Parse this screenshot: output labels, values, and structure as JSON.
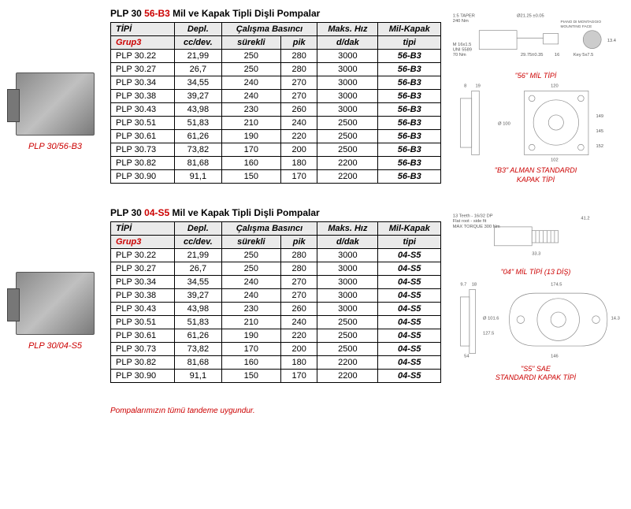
{
  "footnote": "Pompalarımızın tümü tandeme uygundur.",
  "sections": [
    {
      "pump_label": "PLP 30/56-B3",
      "title_prefix": "PLP 30 ",
      "title_red": "56-B3",
      "title_suffix": " Mil ve  Kapak Tipli Dişli Pompalar",
      "header1": {
        "c0": "TİPİ",
        "c1": "Depl.",
        "c2": "Çalışma Basıncı",
        "c3": "Maks. Hız",
        "c4": "Mil-Kapak"
      },
      "header2": {
        "c0": "Grup3",
        "c1": "cc/dev.",
        "c2a": "sürekli",
        "c2b": "pik",
        "c3": "d/dak",
        "c4": "tipi"
      },
      "rows": [
        {
          "c0": "PLP 30.22",
          "c1": "21,99",
          "c2": "250",
          "c3": "280",
          "c4": "3000",
          "c5": "56-B3"
        },
        {
          "c0": "PLP 30.27",
          "c1": "26,7",
          "c2": "250",
          "c3": "280",
          "c4": "3000",
          "c5": "56-B3"
        },
        {
          "c0": "PLP 30.34",
          "c1": "34,55",
          "c2": "240",
          "c3": "270",
          "c4": "3000",
          "c5": "56-B3"
        },
        {
          "c0": "PLP 30.38",
          "c1": "39,27",
          "c2": "240",
          "c3": "270",
          "c4": "3000",
          "c5": "56-B3"
        },
        {
          "c0": "PLP 30.43",
          "c1": "43,98",
          "c2": "230",
          "c3": "260",
          "c4": "3000",
          "c5": "56-B3"
        },
        {
          "c0": "PLP 30.51",
          "c1": "51,83",
          "c2": "210",
          "c3": "240",
          "c4": "2500",
          "c5": "56-B3"
        },
        {
          "c0": "PLP 30.61",
          "c1": "61,26",
          "c2": "190",
          "c3": "220",
          "c4": "2500",
          "c5": "56-B3"
        },
        {
          "c0": "PLP 30.73",
          "c1": "73,82",
          "c2": "170",
          "c3": "200",
          "c4": "2500",
          "c5": "56-B3"
        },
        {
          "c0": "PLP 30.82",
          "c1": "81,68",
          "c2": "160",
          "c3": "180",
          "c4": "2200",
          "c5": "56-B3"
        },
        {
          "c0": "PLP 30.90",
          "c1": "91,1",
          "c2": "150",
          "c3": "170",
          "c4": "2200",
          "c5": "56-B3"
        }
      ],
      "diag1_texts": {
        "t1": "1:5 TAPER",
        "t2": "240 Nm",
        "t3": "Ø21.25 ±0.05",
        "t4": "PIANO DI MONTAGGIO",
        "t5": "MOUNTING FACE",
        "t6": "M 16x1.5",
        "t7": "UNI 5589",
        "t8": "70 Nm",
        "t9": "29.75±0.35",
        "t10": "16",
        "t11": "Key 5x7.5",
        "t12": "13.4"
      },
      "diag1_label": "\"56\" MİL TİPİ",
      "diag2_texts": {
        "t1": "8",
        "t2": "19",
        "t3": "120",
        "t4": "149",
        "t5": "Ø 100",
        "t6": "102",
        "t7": "145",
        "t8": "152"
      },
      "diag2_label_a": "\"B3\" ALMAN STANDARDI",
      "diag2_label_b": "KAPAK TİPİ"
    },
    {
      "pump_label": "PLP 30/04-S5",
      "title_prefix": "PLP 30 ",
      "title_red": "04-S5",
      "title_suffix": " Mil ve  Kapak Tipli Dişli Pompalar",
      "header1": {
        "c0": "TİPİ",
        "c1": "Depl.",
        "c2": "Çalışma Basıncı",
        "c3": "Maks. Hız",
        "c4": "Mil-Kapak"
      },
      "header2": {
        "c0": "Grup3",
        "c1": "cc/dev.",
        "c2a": "sürekli",
        "c2b": "pik",
        "c3": "d/dak",
        "c4": "tipi"
      },
      "rows": [
        {
          "c0": "PLP 30.22",
          "c1": "21,99",
          "c2": "250",
          "c3": "280",
          "c4": "3000",
          "c5": "04-S5"
        },
        {
          "c0": "PLP 30.27",
          "c1": "26,7",
          "c2": "250",
          "c3": "280",
          "c4": "3000",
          "c5": "04-S5"
        },
        {
          "c0": "PLP 30.34",
          "c1": "34,55",
          "c2": "240",
          "c3": "270",
          "c4": "3000",
          "c5": "04-S5"
        },
        {
          "c0": "PLP 30.38",
          "c1": "39,27",
          "c2": "240",
          "c3": "270",
          "c4": "3000",
          "c5": "04-S5"
        },
        {
          "c0": "PLP 30.43",
          "c1": "43,98",
          "c2": "230",
          "c3": "260",
          "c4": "3000",
          "c5": "04-S5"
        },
        {
          "c0": "PLP 30.51",
          "c1": "51,83",
          "c2": "210",
          "c3": "240",
          "c4": "2500",
          "c5": "04-S5"
        },
        {
          "c0": "PLP 30.61",
          "c1": "61,26",
          "c2": "190",
          "c3": "220",
          "c4": "2500",
          "c5": "04-S5"
        },
        {
          "c0": "PLP 30.73",
          "c1": "73,82",
          "c2": "170",
          "c3": "200",
          "c4": "2500",
          "c5": "04-S5"
        },
        {
          "c0": "PLP 30.82",
          "c1": "81,68",
          "c2": "160",
          "c3": "180",
          "c4": "2200",
          "c5": "04-S5"
        },
        {
          "c0": "PLP 30.90",
          "c1": "91,1",
          "c2": "150",
          "c3": "170",
          "c4": "2200",
          "c5": "04-S5"
        }
      ],
      "diag1_texts": {
        "t1": "13 Teeth - 16/32 DP",
        "t2": "Flat root - side fit",
        "t3": "MAX TORQUE 300 Nm",
        "t4": "41.2",
        "t5": "33.3"
      },
      "diag1_label": "\"04\" MİL TİPİ (13 DİŞ)",
      "diag2_texts": {
        "t1": "9.7",
        "t2": "18",
        "t3": "174.5",
        "t4": "Ø 101.6",
        "t5": "127.5",
        "t6": "54",
        "t7": "146",
        "t8": "14.3"
      },
      "diag2_label_a": "\"S5\"  SAE",
      "diag2_label_b": "STANDARDI KAPAK TİPİ"
    }
  ]
}
